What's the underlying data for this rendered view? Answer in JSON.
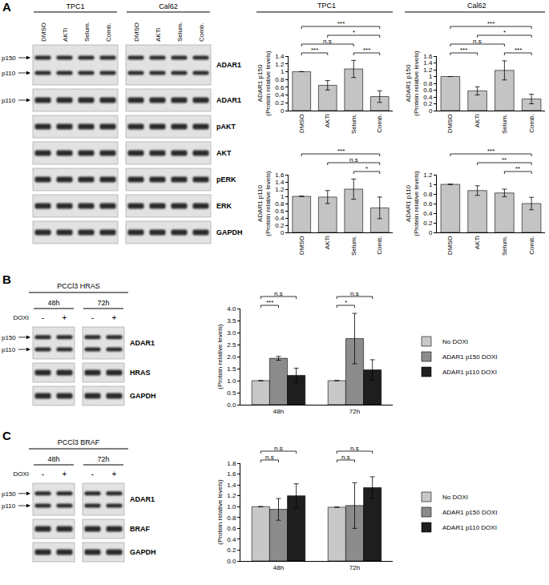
{
  "chart_data": [
    {
      "type": "bar",
      "group": "TPC1",
      "categories": [
        "DMSO",
        "AKTi",
        "Selum.",
        "Comb."
      ],
      "values": [
        1.0,
        0.65,
        1.07,
        0.36
      ],
      "errors": [
        0,
        0.12,
        0.22,
        0.15
      ],
      "color": "#c4c4c4",
      "ylabel": [
        "ADAR1 p150",
        "(Protein relative levels)"
      ],
      "ylim": [
        0,
        1.4
      ],
      "yticks": [
        0,
        0.2,
        0.4,
        0.6,
        0.8,
        1,
        1.2,
        1.4
      ],
      "grid": false,
      "significance": [
        {
          "from": "DMSO",
          "to": "AKTi",
          "label": "***"
        },
        {
          "from": "Selum.",
          "to": "Comb.",
          "label": "***"
        },
        {
          "from": "DMSO",
          "to": "Selum.",
          "label": "n.s"
        },
        {
          "from": "AKTi",
          "to": "Comb.",
          "label": "*"
        },
        {
          "from": "DMSO",
          "to": "Comb.",
          "label": "***"
        }
      ]
    },
    {
      "type": "bar",
      "group": "TPC1",
      "categories": [
        "DMSO",
        "AKTi",
        "Selum.",
        "Comb."
      ],
      "values": [
        1.0,
        0.98,
        1.2,
        0.68
      ],
      "errors": [
        0,
        0.18,
        0.28,
        0.3
      ],
      "color": "#c4c4c4",
      "ylabel": [
        "ADAR1 p110",
        "(Protein relative levels)"
      ],
      "ylim": [
        0,
        1.6
      ],
      "yticks": [
        0,
        0.2,
        0.4,
        0.6,
        0.8,
        1,
        1.2,
        1.4,
        1.6
      ],
      "grid": false,
      "significance": [
        {
          "from": "Selum.",
          "to": "Comb.",
          "label": "*"
        },
        {
          "from": "AKTi",
          "to": "Comb.",
          "label": "n.s"
        },
        {
          "from": "DMSO",
          "to": "Comb.",
          "label": "***"
        }
      ]
    },
    {
      "type": "bar",
      "group": "Cal62",
      "categories": [
        "DMSO",
        "AKTi",
        "Selum.",
        "Comb."
      ],
      "values": [
        1.0,
        0.58,
        1.18,
        0.34
      ],
      "errors": [
        0,
        0.12,
        0.28,
        0.14
      ],
      "color": "#c4c4c4",
      "ylabel": [
        "ADAR1 p150",
        "(Protein relative levels)"
      ],
      "ylim": [
        0,
        1.6
      ],
      "yticks": [
        0,
        0.2,
        0.4,
        0.6,
        0.8,
        1,
        1.2,
        1.4,
        1.6
      ],
      "grid": false,
      "significance": [
        {
          "from": "DMSO",
          "to": "AKTi",
          "label": "***"
        },
        {
          "from": "Selum.",
          "to": "Comb.",
          "label": "***"
        },
        {
          "from": "DMSO",
          "to": "Selum.",
          "label": "n.s"
        },
        {
          "from": "AKTi",
          "to": "Comb.",
          "label": "*"
        },
        {
          "from": "DMSO",
          "to": "Comb.",
          "label": "***"
        }
      ]
    },
    {
      "type": "bar",
      "group": "Cal62",
      "categories": [
        "DMSO",
        "AKTi",
        "Selum.",
        "Comb."
      ],
      "values": [
        1.0,
        0.87,
        0.82,
        0.6
      ],
      "errors": [
        0,
        0.1,
        0.08,
        0.13
      ],
      "color": "#c4c4c4",
      "ylabel": [
        "ADAR1 p110",
        "(Protein relative levels)"
      ],
      "ylim": [
        0,
        1.2
      ],
      "yticks": [
        0,
        0.2,
        0.4,
        0.6,
        0.8,
        1,
        1.2
      ],
      "grid": false,
      "significance": [
        {
          "from": "Selum.",
          "to": "Comb.",
          "label": "**"
        },
        {
          "from": "AKTi",
          "to": "Comb.",
          "label": "**"
        },
        {
          "from": "DMSO",
          "to": "Comb.",
          "label": "***"
        }
      ]
    },
    {
      "type": "bar",
      "categories": [
        "48h",
        "72h"
      ],
      "series": [
        {
          "name": "No DOXI",
          "color": "#c8c8c8",
          "values": [
            1.0,
            1.0
          ],
          "errors": [
            0,
            0
          ]
        },
        {
          "name": "ADAR1 p150 DOXI",
          "color": "#8c8c8c",
          "values": [
            1.93,
            2.75
          ],
          "errors": [
            0.08,
            1.05
          ]
        },
        {
          "name": "ADAR1 p110 DOXI",
          "color": "#1e1e1e",
          "values": [
            1.22,
            1.45
          ],
          "errors": [
            0.3,
            0.42
          ]
        }
      ],
      "ylabel": [
        "(Protein relative levels)"
      ],
      "ylim": [
        0,
        4
      ],
      "yticks": [
        {
          "value": 0,
          "label": "0.0"
        },
        0.5,
        {
          "value": 1,
          "label": "1.0"
        },
        1.5,
        {
          "value": 2,
          "label": "2.0"
        },
        2.5,
        {
          "value": 3,
          "label": "3.0"
        },
        3.5,
        {
          "value": 4,
          "label": "4.0"
        }
      ],
      "grid": false,
      "legend": "right",
      "significance": [
        {
          "category": "48h",
          "from": "No DOXI",
          "to": "ADAR1 p150 DOXI",
          "label": "***"
        },
        {
          "category": "48h",
          "from": "No DOXI",
          "to": "ADAR1 p110 DOXI",
          "label": "n.s"
        },
        {
          "category": "72h",
          "from": "No DOXI",
          "to": "ADAR1 p150 DOXI",
          "label": "*"
        },
        {
          "category": "72h",
          "from": "No DOXI",
          "to": "ADAR1 p110 DOXI",
          "label": "n.s"
        }
      ]
    },
    {
      "type": "bar",
      "categories": [
        "48h",
        "72h"
      ],
      "series": [
        {
          "name": "No DOXI",
          "color": "#c8c8c8",
          "values": [
            1.0,
            0.99
          ],
          "errors": [
            0,
            0
          ]
        },
        {
          "name": "ADAR1 p150 DOXI",
          "color": "#8c8c8c",
          "values": [
            0.95,
            1.02
          ],
          "errors": [
            0.2,
            0.42
          ]
        },
        {
          "name": "ADAR1 p110 DOXI",
          "color": "#1e1e1e",
          "values": [
            1.2,
            1.35
          ],
          "errors": [
            0.22,
            0.2
          ]
        }
      ],
      "ylabel": [
        "(Protein relative levels)"
      ],
      "ylim": [
        0,
        1.8
      ],
      "yticks": [
        {
          "value": 0,
          "label": "0.0"
        },
        0.2,
        0.4,
        0.6,
        0.8,
        {
          "value": 1,
          "label": "1.0"
        },
        1.2,
        1.4,
        1.6,
        1.8
      ],
      "grid": false,
      "legend": "right",
      "significance": [
        {
          "category": "48h",
          "from": "No DOXI",
          "to": "ADAR1 p150 DOXI",
          "label": "n.s"
        },
        {
          "category": "48h",
          "from": "No DOXI",
          "to": "ADAR1 p110 DOXI",
          "label": "n.s"
        },
        {
          "category": "72h",
          "from": "No DOXI",
          "to": "ADAR1 p150 DOXI",
          "label": "n.s"
        },
        {
          "category": "72h",
          "from": "No DOXI",
          "to": "ADAR1 p110 DOXI",
          "label": "n.s"
        }
      ]
    }
  ],
  "blots": [
    {
      "panel": "A",
      "groups": [
        {
          "name": "TPC1",
          "lanes": [
            "DMSO",
            "AKTi",
            "Selum.",
            "Comb."
          ]
        },
        {
          "name": "Cal62",
          "lanes": [
            "DMSO",
            "AKTi",
            "Selum.",
            "Comb."
          ]
        }
      ],
      "rows": [
        {
          "label": "ADAR1",
          "bands": [
            "p150",
            "p110"
          ]
        },
        {
          "label": "ADAR1",
          "bands": [
            "p110"
          ]
        },
        {
          "label": "pAKT"
        },
        {
          "label": "AKT"
        },
        {
          "label": "pERK"
        },
        {
          "label": "ERK"
        },
        {
          "label": "GAPDH"
        }
      ]
    },
    {
      "panel": "B",
      "title": "PCCl3 HRAS",
      "lane_row_label": "DOXI",
      "groups": [
        {
          "name": "48h",
          "lanes": [
            "-",
            "+"
          ]
        },
        {
          "name": "72h",
          "lanes": [
            "-",
            "+"
          ]
        }
      ],
      "rows": [
        {
          "label": "ADAR1",
          "bands": [
            "p150",
            "p110"
          ]
        },
        {
          "label": "HRAS"
        },
        {
          "label": "GAPDH"
        }
      ]
    },
    {
      "panel": "C",
      "title": "PCCl3 BRAF",
      "lane_row_label": "DOXI",
      "groups": [
        {
          "name": "48h",
          "lanes": [
            "-",
            "+"
          ]
        },
        {
          "name": "72h",
          "lanes": [
            "-",
            "+"
          ]
        }
      ],
      "rows": [
        {
          "label": "ADAR1",
          "bands": [
            "p150",
            "p110"
          ]
        },
        {
          "label": "BRAF"
        },
        {
          "label": "GAPDH"
        }
      ]
    }
  ]
}
